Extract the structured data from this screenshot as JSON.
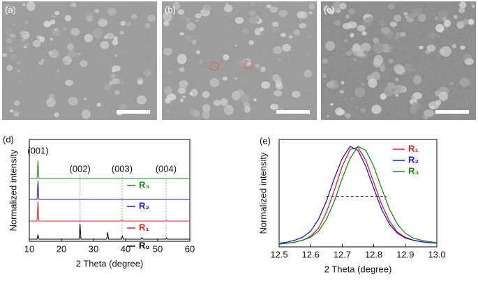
{
  "panels": [
    {
      "label": "(a)"
    },
    {
      "label": "(b)"
    },
    {
      "label": "(c)"
    }
  ],
  "chart_data": [
    {
      "type": "line",
      "panel_label": "(d)",
      "xlabel": "2 Theta (degree)",
      "ylabel": "Normalized intensity",
      "xlim": [
        10,
        60
      ],
      "xticks": [
        10,
        20,
        30,
        40,
        50,
        60
      ],
      "x": [
        10,
        12.4,
        12.7,
        13.0,
        25.5,
        25.8,
        26.1,
        34.1,
        34.4,
        34.7,
        38.7,
        39.0,
        39.3,
        44.8,
        45.1,
        45.4,
        52.4,
        52.7,
        53.0,
        60
      ],
      "series": [
        {
          "name": "R₃",
          "color": "#1a8a1a",
          "values": [
            0,
            0,
            1,
            0,
            0,
            0,
            0,
            0,
            0,
            0,
            0,
            0.02,
            0,
            0,
            0,
            0,
            0,
            0,
            0,
            0
          ]
        },
        {
          "name": "R₂",
          "color": "#1a1adb",
          "values": [
            0,
            0,
            1,
            0,
            0,
            0,
            0,
            0,
            0,
            0,
            0,
            0.03,
            0,
            0,
            0,
            0,
            0,
            0,
            0,
            0
          ]
        },
        {
          "name": "R₁",
          "color": "#e02020",
          "values": [
            0,
            0,
            1,
            0,
            0,
            0,
            0,
            0,
            0,
            0,
            0,
            0.03,
            0,
            0,
            0,
            0,
            0,
            0.02,
            0,
            0
          ]
        },
        {
          "name": "R₀",
          "color": "#000000",
          "values": [
            0,
            0,
            0.3,
            0,
            0,
            1,
            0,
            0,
            0.45,
            0,
            0,
            0.2,
            0,
            0,
            0.1,
            0,
            0,
            0.08,
            0,
            0
          ]
        }
      ],
      "annotations": [
        {
          "text": "(001)",
          "x": 12.7
        },
        {
          "text": "(002)",
          "x": 25.8
        },
        {
          "text": "(003)",
          "x": 38.9
        },
        {
          "text": "(004)",
          "x": 52.6
        }
      ]
    },
    {
      "type": "line",
      "panel_label": "(e)",
      "xlabel": "2 Theta (degree)",
      "ylabel": "Normalized intensity",
      "xlim": [
        12.5,
        13.0
      ],
      "xticks": [
        12.5,
        12.6,
        12.7,
        12.8,
        12.9,
        {
          "value": 13.0,
          "label": "13.0"
        }
      ],
      "x": [
        12.5,
        12.525,
        12.55,
        12.575,
        12.6,
        12.625,
        12.65,
        12.675,
        12.7,
        12.725,
        12.75,
        12.775,
        12.8,
        12.825,
        12.85,
        12.875,
        12.9,
        12.925,
        12.95,
        12.975,
        13.0
      ],
      "series": [
        {
          "name": "R₁",
          "color": "#e02020",
          "values": [
            0.02,
            0.03,
            0.04,
            0.06,
            0.1,
            0.18,
            0.34,
            0.56,
            0.8,
            0.97,
            0.99,
            0.86,
            0.64,
            0.42,
            0.25,
            0.14,
            0.09,
            0.06,
            0.045,
            0.035,
            0.03
          ]
        },
        {
          "name": "R₂",
          "color": "#1a1adb",
          "values": [
            0.03,
            0.04,
            0.06,
            0.09,
            0.15,
            0.27,
            0.45,
            0.68,
            0.88,
            1.0,
            0.96,
            0.8,
            0.58,
            0.37,
            0.22,
            0.13,
            0.08,
            0.06,
            0.045,
            0.035,
            0.03
          ]
        },
        {
          "name": "R₃",
          "color": "#1a8a1a",
          "values": [
            0.02,
            0.03,
            0.04,
            0.06,
            0.09,
            0.15,
            0.27,
            0.45,
            0.68,
            0.88,
            1.0,
            0.96,
            0.8,
            0.58,
            0.37,
            0.22,
            0.13,
            0.08,
            0.06,
            0.045,
            0.035
          ]
        }
      ],
      "reference_line": {
        "x": [
          12.65,
          12.84
        ],
        "y": 0.5
      }
    }
  ]
}
